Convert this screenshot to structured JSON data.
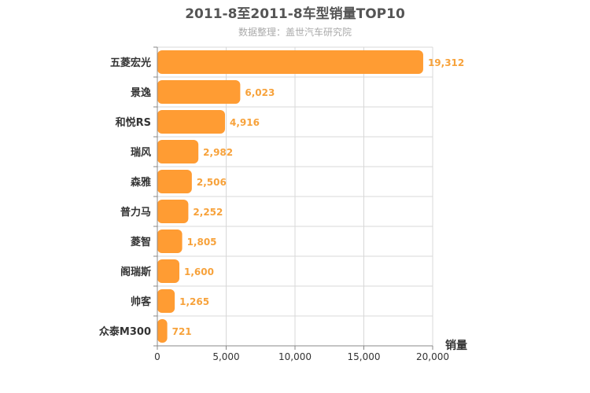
{
  "chart_data": {
    "type": "bar",
    "orientation": "horizontal",
    "title": "2011-8至2011-8车型销量TOP10",
    "subtitle": "数据整理：盖世汽车研究院",
    "xlabel": "销量",
    "ylabel": "",
    "categories": [
      "五菱宏光",
      "景逸",
      "和悦RS",
      "瑞风",
      "森雅",
      "普力马",
      "菱智",
      "阁瑞斯",
      "帅客",
      "众泰M300"
    ],
    "values": [
      19312,
      6023,
      4916,
      2982,
      2506,
      2252,
      1805,
      1600,
      1265,
      721
    ],
    "value_labels": [
      "19,312",
      "6,023",
      "4,916",
      "2,982",
      "2,506",
      "2,252",
      "1,805",
      "1,600",
      "1,265",
      "721"
    ],
    "xlim": [
      0,
      20000
    ],
    "xticks": [
      0,
      5000,
      10000,
      15000,
      20000
    ],
    "xtick_labels": [
      "0",
      "5,000",
      "10,000",
      "15,000",
      "20,000"
    ],
    "grid": true,
    "legend": "none",
    "colors": {
      "bar": "#ff9c33",
      "label": "#f7a23b",
      "grid": "#d8d8d8",
      "axis": "#888888"
    }
  }
}
